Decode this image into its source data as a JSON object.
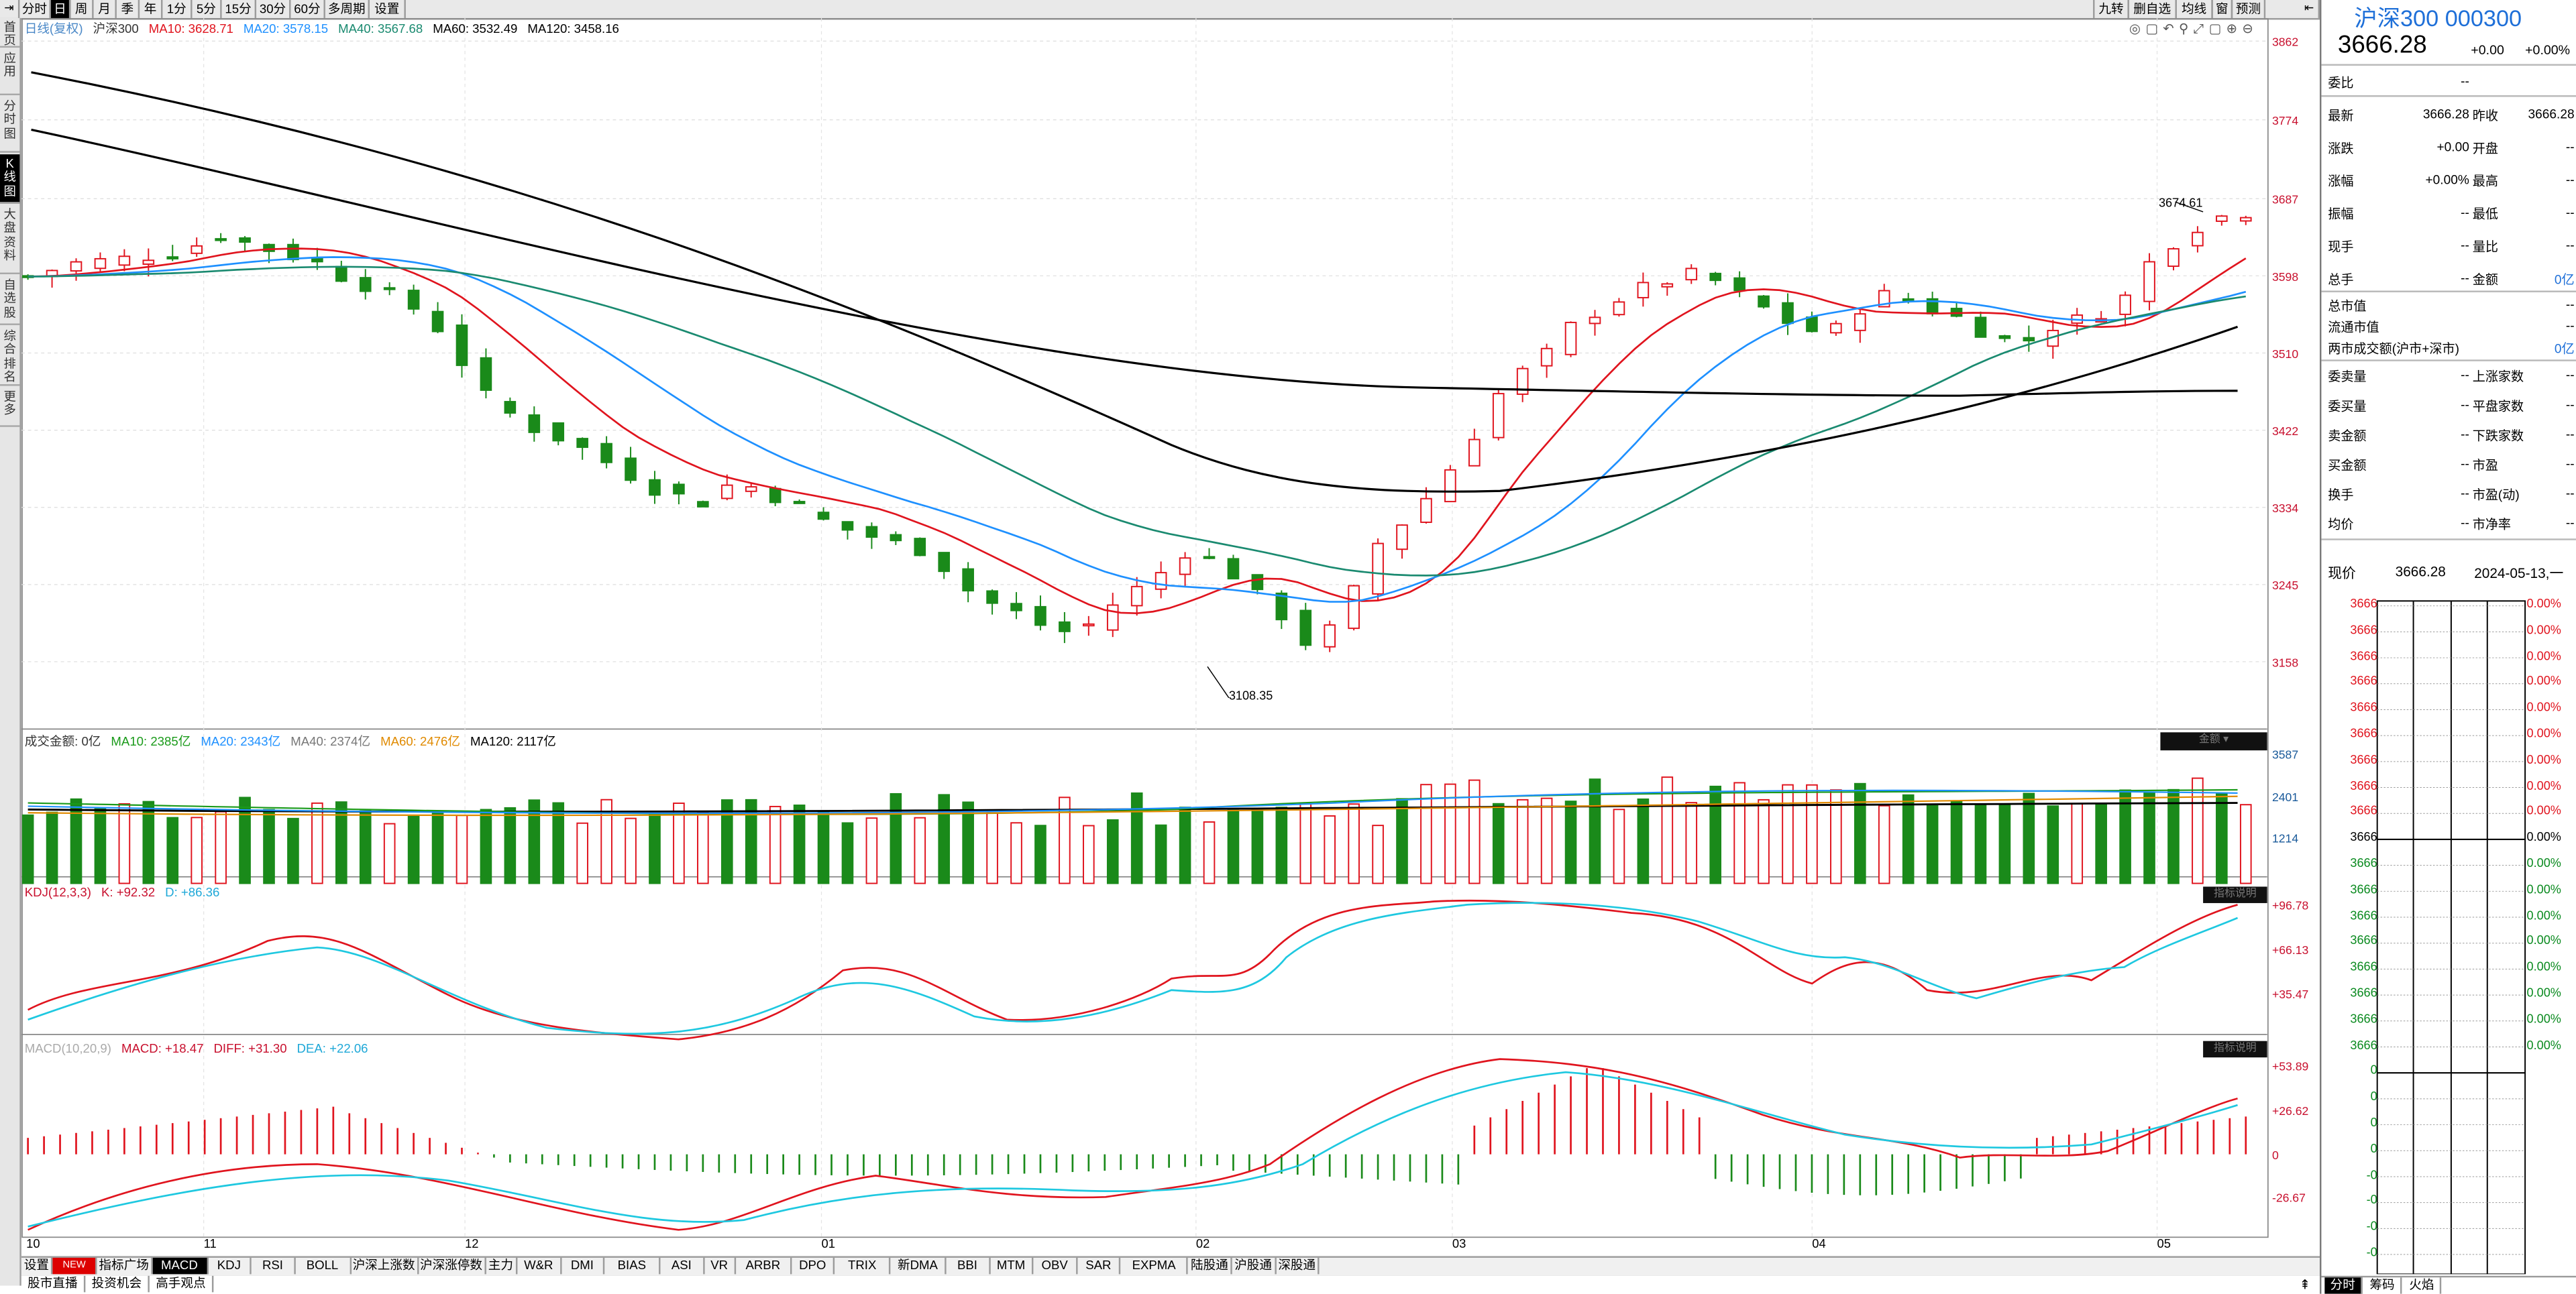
{
  "toolbar": {
    "left_items": [
      "分时",
      "日",
      "周",
      "月",
      "季",
      "年",
      "1分",
      "5分",
      "15分",
      "30分",
      "60分",
      "多周期",
      "设置"
    ],
    "active": "日",
    "right_items": [
      "九转",
      "删自选",
      "均线",
      "窗",
      "预测"
    ]
  },
  "left_bar": {
    "items": [
      "首页",
      "应用",
      "分时图",
      "K线图",
      "大盘资料",
      "自选股",
      "综合排名",
      "更多"
    ],
    "active": "K线图"
  },
  "main_legend": {
    "period": "日线(复权)",
    "name": "沪深300",
    "ma10": "MA10: 3628.71",
    "ma20": "MA20: 3578.15",
    "ma40": "MA40: 3567.68",
    "ma60": "MA60: 3532.49",
    "ma120": "MA120: 3458.16"
  },
  "price_axis": [
    "3862",
    "3774",
    "3687",
    "3598",
    "3510",
    "3422",
    "3334",
    "3245",
    "3158"
  ],
  "annotations": {
    "high": "3674.61",
    "low": "3108.35"
  },
  "volume": {
    "legend": {
      "label": "成交金额: 0亿",
      "ma10": "MA10: 2385亿",
      "ma20": "MA20: 2343亿",
      "ma40": "MA40: 2374亿",
      "ma60": "MA60: 2476亿",
      "ma120": "MA120: 2117亿"
    },
    "axis": [
      "3587",
      "2401",
      "1214"
    ],
    "badge": "金额"
  },
  "kdj": {
    "legend": {
      "label": "KDJ(12,3,3)",
      "k": "K: +92.32",
      "d": "D: +86.36"
    },
    "axis": [
      "+96.78",
      "+66.13",
      "+35.47"
    ],
    "badge": "指标说明"
  },
  "macd": {
    "legend": {
      "label": "MACD(10,20,9)",
      "macd": "MACD: +18.47",
      "diff": "DIFF: +31.30",
      "dea": "DEA: +22.06"
    },
    "axis": [
      "+53.89",
      "+26.62",
      "0",
      "-26.67"
    ],
    "badge": "指标说明"
  },
  "x_axis": [
    "10",
    "11",
    "12",
    "01",
    "02",
    "03",
    "04",
    "05"
  ],
  "bottom_tabs": {
    "row1": [
      "设置",
      "NEW",
      "指标广场",
      "MACD",
      "KDJ",
      "RSI",
      "BOLL",
      "沪深上涨数",
      "沪深涨停数",
      "主力",
      "W&R",
      "DMI",
      "BIAS",
      "ASI",
      "VR",
      "ARBR",
      "DPO",
      "TRIX",
      "新DMA",
      "BBI",
      "MTM",
      "OBV",
      "SAR",
      "EXPMA",
      "陆股通",
      "沪股通",
      "深股通"
    ],
    "active": "MACD",
    "row2": [
      "股市直播",
      "投资机会",
      "高手观点"
    ]
  },
  "quote": {
    "title": "沪深300 000300",
    "price": "3666.28",
    "change": "+0.00",
    "change_pct": "+0.00%",
    "weibi_label": "委比",
    "weibi_val": "--",
    "rows_left": [
      {
        "label": "最新",
        "val": "3666.28"
      },
      {
        "label": "涨跌",
        "val": "+0.00"
      },
      {
        "label": "涨幅",
        "val": "+0.00%"
      },
      {
        "label": "振幅",
        "val": "--"
      },
      {
        "label": "现手",
        "val": "--"
      },
      {
        "label": "总手",
        "val": "--"
      }
    ],
    "rows_right": [
      {
        "label": "昨收",
        "val": "3666.28"
      },
      {
        "label": "开盘",
        "val": "--"
      },
      {
        "label": "最高",
        "val": "--"
      },
      {
        "label": "最低",
        "val": "--"
      },
      {
        "label": "量比",
        "val": "--"
      },
      {
        "label": "金额",
        "val": "0亿"
      }
    ],
    "market": [
      {
        "label": "总市值",
        "val": "--"
      },
      {
        "label": "流通市值",
        "val": "--"
      },
      {
        "label": "两市成交额(沪市+深市)",
        "val": "0亿"
      }
    ],
    "stats_left": [
      {
        "label": "委卖量",
        "val": "--"
      },
      {
        "label": "委买量",
        "val": "--"
      },
      {
        "label": "卖金额",
        "val": "--"
      },
      {
        "label": "买金额",
        "val": "--"
      },
      {
        "label": "换手",
        "val": "--"
      },
      {
        "label": "均价",
        "val": "--"
      }
    ],
    "stats_right": [
      {
        "label": "上涨家数",
        "val": "--"
      },
      {
        "label": "平盘家数",
        "val": "--"
      },
      {
        "label": "下跌家数",
        "val": "--"
      },
      {
        "label": "市盈",
        "val": "--"
      },
      {
        "label": "市盈(动)",
        "val": "--"
      },
      {
        "label": "市净率",
        "val": "--"
      }
    ],
    "now_label": "现价",
    "now_price": "3666.28",
    "now_date": "2024-05-13,一",
    "mini_left": [
      "3666",
      "3666",
      "3666",
      "3666",
      "3666",
      "3666",
      "3666",
      "3666",
      "3666",
      "3666",
      "3666",
      "3666",
      "3666",
      "3666",
      "3666",
      "3666",
      "3666",
      "3666",
      "0",
      "0",
      "0",
      "0",
      "-0",
      "-0",
      "-0",
      "-0"
    ],
    "mini_right": [
      "0.00%",
      "0.00%",
      "0.00%",
      "0.00%",
      "0.00%",
      "0.00%",
      "0.00%",
      "0.00%",
      "0.00%",
      "0.00%",
      "0.00%",
      "0.00%",
      "0.00%",
      "0.00%",
      "0.00%",
      "0.00%",
      "0.00%",
      "0.00%"
    ],
    "tabs": [
      "分时",
      "筹码",
      "火焰"
    ],
    "active_tab": "分时"
  },
  "colors": {
    "up": "#e0141e",
    "down": "#1a8a1a",
    "ma10": "#e0141e",
    "ma20": "#1e90ff",
    "ma40": "#1a8a70",
    "ma60": "#000000",
    "ma120": "#000000"
  },
  "chart_data": {
    "type": "candlestick",
    "title": "沪深300",
    "x_ticks": [
      "10",
      "11",
      "12",
      "01",
      "02",
      "03",
      "04",
      "05"
    ],
    "ylim": [
      3100,
      3870
    ],
    "latest": {
      "close": 3666.28,
      "high_mark": 3674.61,
      "low_mark": 3108.35
    },
    "ma_latest": {
      "MA10": 3628.71,
      "MA20": 3578.15,
      "MA40": 3567.68,
      "MA60": 3532.49,
      "MA120": 3458.16
    }
  }
}
